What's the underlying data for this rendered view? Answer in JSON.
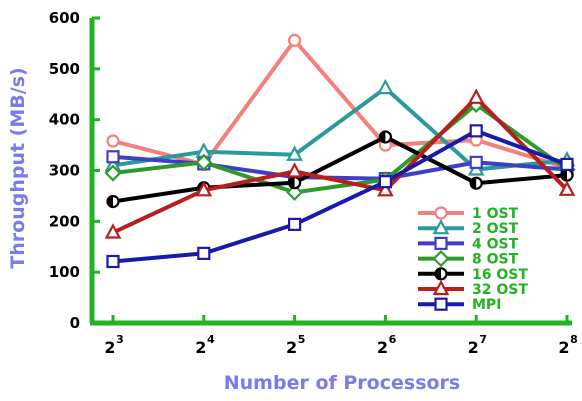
{
  "chart_data": {
    "type": "line",
    "title": "",
    "xlabel": "Number of Processors",
    "ylabel": "Throughput (MB/s)",
    "x": [
      8,
      16,
      32,
      64,
      128,
      256
    ],
    "x_tick_labels": [
      {
        "base": "2",
        "exp": "3"
      },
      {
        "base": "2",
        "exp": "4"
      },
      {
        "base": "2",
        "exp": "5"
      },
      {
        "base": "2",
        "exp": "6"
      },
      {
        "base": "2",
        "exp": "7"
      },
      {
        "base": "2",
        "exp": "8"
      }
    ],
    "x_scale": "log2",
    "ylim": [
      0,
      600
    ],
    "y_ticks": [
      0,
      100,
      200,
      300,
      400,
      500,
      600
    ],
    "grid": false,
    "legend_position": "bottom-right",
    "axis_color": "#22b322",
    "label_color": "#7b7bea",
    "series": [
      {
        "name": "1 OST",
        "color": "#f47f7b",
        "marker": "circle",
        "values": [
          358,
          312,
          556,
          350,
          360,
          305
        ]
      },
      {
        "name": "2 OST",
        "color": "#2b9a9a",
        "marker": "triangle",
        "values": [
          310,
          337,
          331,
          462,
          302,
          320
        ]
      },
      {
        "name": "4 OST",
        "color": "#3f3fc5",
        "marker": "square",
        "values": [
          327,
          313,
          287,
          284,
          316,
          302
        ]
      },
      {
        "name": "8 OST",
        "color": "#2e9a2e",
        "marker": "diamond",
        "values": [
          295,
          316,
          257,
          282,
          430,
          302
        ]
      },
      {
        "name": "16 OST",
        "color": "#000000",
        "marker": "halfcircle",
        "values": [
          239,
          266,
          276,
          366,
          275,
          291
        ]
      },
      {
        "name": "32 OST",
        "color": "#b81e1e",
        "marker": "triangle",
        "values": [
          178,
          261,
          298,
          261,
          443,
          262
        ]
      },
      {
        "name": "MPI",
        "color": "#1a1aa8",
        "marker": "square",
        "values": [
          121,
          137,
          194,
          278,
          378,
          312
        ]
      }
    ]
  }
}
